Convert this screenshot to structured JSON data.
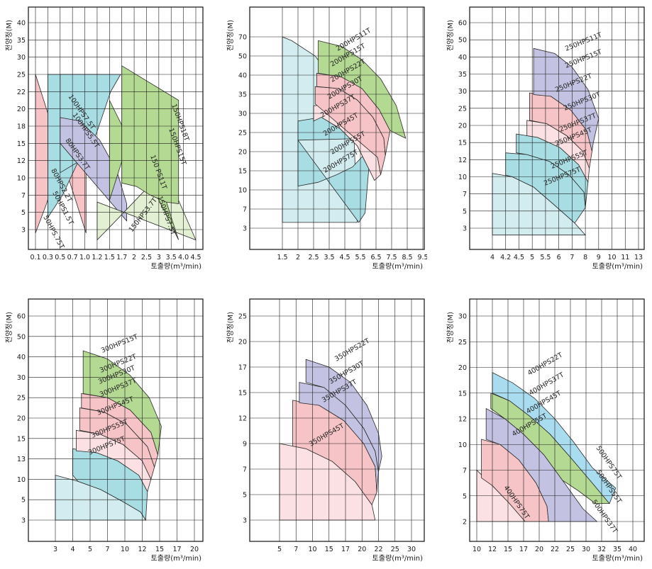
{
  "axis_labels": {
    "y": "전양정(M)",
    "x": "토출량(m³/min)"
  },
  "colors": {
    "pink": "#f6c4c6",
    "blue": "#a9dde4",
    "lavender": "#c3c2e2",
    "green": "#b4d993",
    "paleGreen": "#e3f0d3",
    "palePink": "#fbe1e3",
    "paleBlue": "#d3ecef",
    "sky": "#aadcef"
  },
  "chart_data": [
    {
      "type": "area",
      "yticks": [
        "40",
        "35",
        "30",
        "25",
        "22",
        "20",
        "18",
        "15",
        "12",
        "10",
        "7",
        "5",
        "3"
      ],
      "xticks": [
        "0.1",
        "0.3",
        "0.5",
        "0.7",
        "1.0",
        "1.2",
        "1.5",
        "1.7",
        "2",
        "2.5",
        "3",
        "3.5",
        "4.0",
        "4.5"
      ],
      "regions": [
        {
          "name": "50HPS.75T",
          "color": "pink",
          "left": "0.1",
          "right": "0.7",
          "top": "12",
          "knee": "5",
          "bottom": "3",
          "rot": 62
        },
        {
          "name": "50HPS1.5T",
          "color": "pink",
          "left": "0.1",
          "right": "0.7",
          "top": "12",
          "knee": "5",
          "bottom": "3",
          "rot": 62,
          "hidden": true
        },
        {
          "name": "80HPS2.2T",
          "color": "blue",
          "left": "0.3",
          "right": "1.0",
          "top": "13.5",
          "knee": "5.5",
          "bottom": "3",
          "rot": 62
        },
        {
          "name": "80HPS3.7T",
          "color": "blue",
          "left": "0.5",
          "right": "1.5",
          "top": "16.5",
          "knee": "6",
          "bottom": "3",
          "rot": 55
        },
        {
          "name": "100HPS5.5T",
          "color": "lavender",
          "left": "0.5",
          "right": "1.7",
          "top": "21.5",
          "knee": "8",
          "bottom": "8",
          "rot": 55
        },
        {
          "name": "100HPS7.5T",
          "color": "lavender",
          "left": "0.5",
          "right": "1.7",
          "top": "22",
          "knee": "8",
          "bottom": "8",
          "rot": 55,
          "hidden": true
        },
        {
          "name": "150HPS3.7T",
          "color": "paleGreen",
          "left": "1.0",
          "right": "3.5",
          "top": "8",
          "knee": "3",
          "bottom": "2.2",
          "rot": -52
        },
        {
          "name": "150HPS7.5T",
          "color": "green",
          "left": "1.5",
          "right": "4.0",
          "top": "18",
          "knee": "4",
          "bottom": "3",
          "rot": 70
        },
        {
          "name": "150 PS11T",
          "color": "green",
          "left": "1.5",
          "right": "4.0",
          "top": "22",
          "knee": "7",
          "bottom": "4",
          "rot": 70,
          "hidden": true
        },
        {
          "name": "150HPS15T",
          "color": "green",
          "left": "1.7",
          "right": "4.0",
          "top": "25",
          "knee": "9",
          "bottom": "5",
          "rot": 70,
          "hidden": true
        },
        {
          "name": "150HPS18T",
          "color": "green",
          "left": "1.7",
          "right": "4.0",
          "top": "28",
          "knee": "12",
          "bottom": "12",
          "rot": 70
        }
      ],
      "labels": [
        "50HPS.75T",
        "50HPS1.5T",
        "80HPS2.2T",
        "80HPS3.7T",
        "100HPS5.5T",
        "100HPS7.5T",
        "150HPS3.7T",
        "150HPS7.5T",
        "150 PS11T",
        "150HPS15T",
        "150HPS18T"
      ]
    },
    {
      "type": "area",
      "yticks": [
        "70",
        "50",
        "40",
        "35",
        "30",
        "25",
        "20",
        "15",
        "10",
        "7",
        "3"
      ],
      "xticks": [
        "1.5",
        "2",
        "2.5",
        "3.5",
        "4.5",
        "5.5",
        "6.5",
        "7.5",
        "8.5",
        "9.5"
      ],
      "labels": [
        "200HPS75T",
        "200HPS55T",
        "200HPS45T",
        "200HPS37T",
        "200HPS30T",
        "200HPS22T",
        "200HPS15T",
        "200HPS11T"
      ]
    },
    {
      "type": "area",
      "yticks": [
        "60",
        "50",
        "40",
        "35",
        "30",
        "25",
        "20",
        "15",
        "12",
        "10",
        "7",
        "5",
        "3"
      ],
      "xticks": [
        "4",
        "4.2",
        "4.5",
        "5",
        "5.5",
        "6",
        "7",
        "8",
        "9",
        "10",
        "11",
        "13"
      ],
      "labels": [
        "250HPS75T",
        "250HPS55T",
        "250HPS45T",
        "250HPS37T",
        "250HPS30T",
        "250HPS22T",
        "250HPS15T",
        "250HPS11T"
      ]
    },
    {
      "type": "area",
      "yticks": [
        "60",
        "50",
        "40",
        "30",
        "25",
        "20",
        "15",
        "13",
        "10",
        "5",
        "3"
      ],
      "xticks": [
        "3",
        "4",
        "5",
        "7",
        "10",
        "12",
        "15",
        "17",
        "20"
      ],
      "labels": [
        "300HPS75T",
        "300HPS55T",
        "300HPS45T",
        "300HPS37T",
        "300HPS30T",
        "300HPS22T",
        "300HPS15T"
      ]
    },
    {
      "type": "area",
      "yticks": [
        "25",
        "20",
        "17",
        "15",
        "12",
        "9",
        "7",
        "5",
        "3"
      ],
      "xticks": [
        "5",
        "7",
        "10",
        "15",
        "17",
        "20",
        "22",
        "25",
        "30"
      ],
      "labels": [
        "350HPS45T",
        "350HPS37T",
        "350HPS30T",
        "350HPS22T"
      ]
    },
    {
      "type": "area",
      "yticks": [
        "30",
        "25",
        "20",
        "15",
        "12",
        "10",
        "7",
        "5",
        "2"
      ],
      "xticks": [
        "10",
        "12",
        "15",
        "17",
        "20",
        "22",
        "25",
        "30",
        "32",
        "35",
        "40"
      ],
      "labels": [
        "400HPS75T",
        "400HPS55T",
        "400HPS45T",
        "400HPS37T",
        "400HPS22T",
        "500HPS75T",
        "500HPS55T",
        "500HPS37T"
      ]
    }
  ]
}
